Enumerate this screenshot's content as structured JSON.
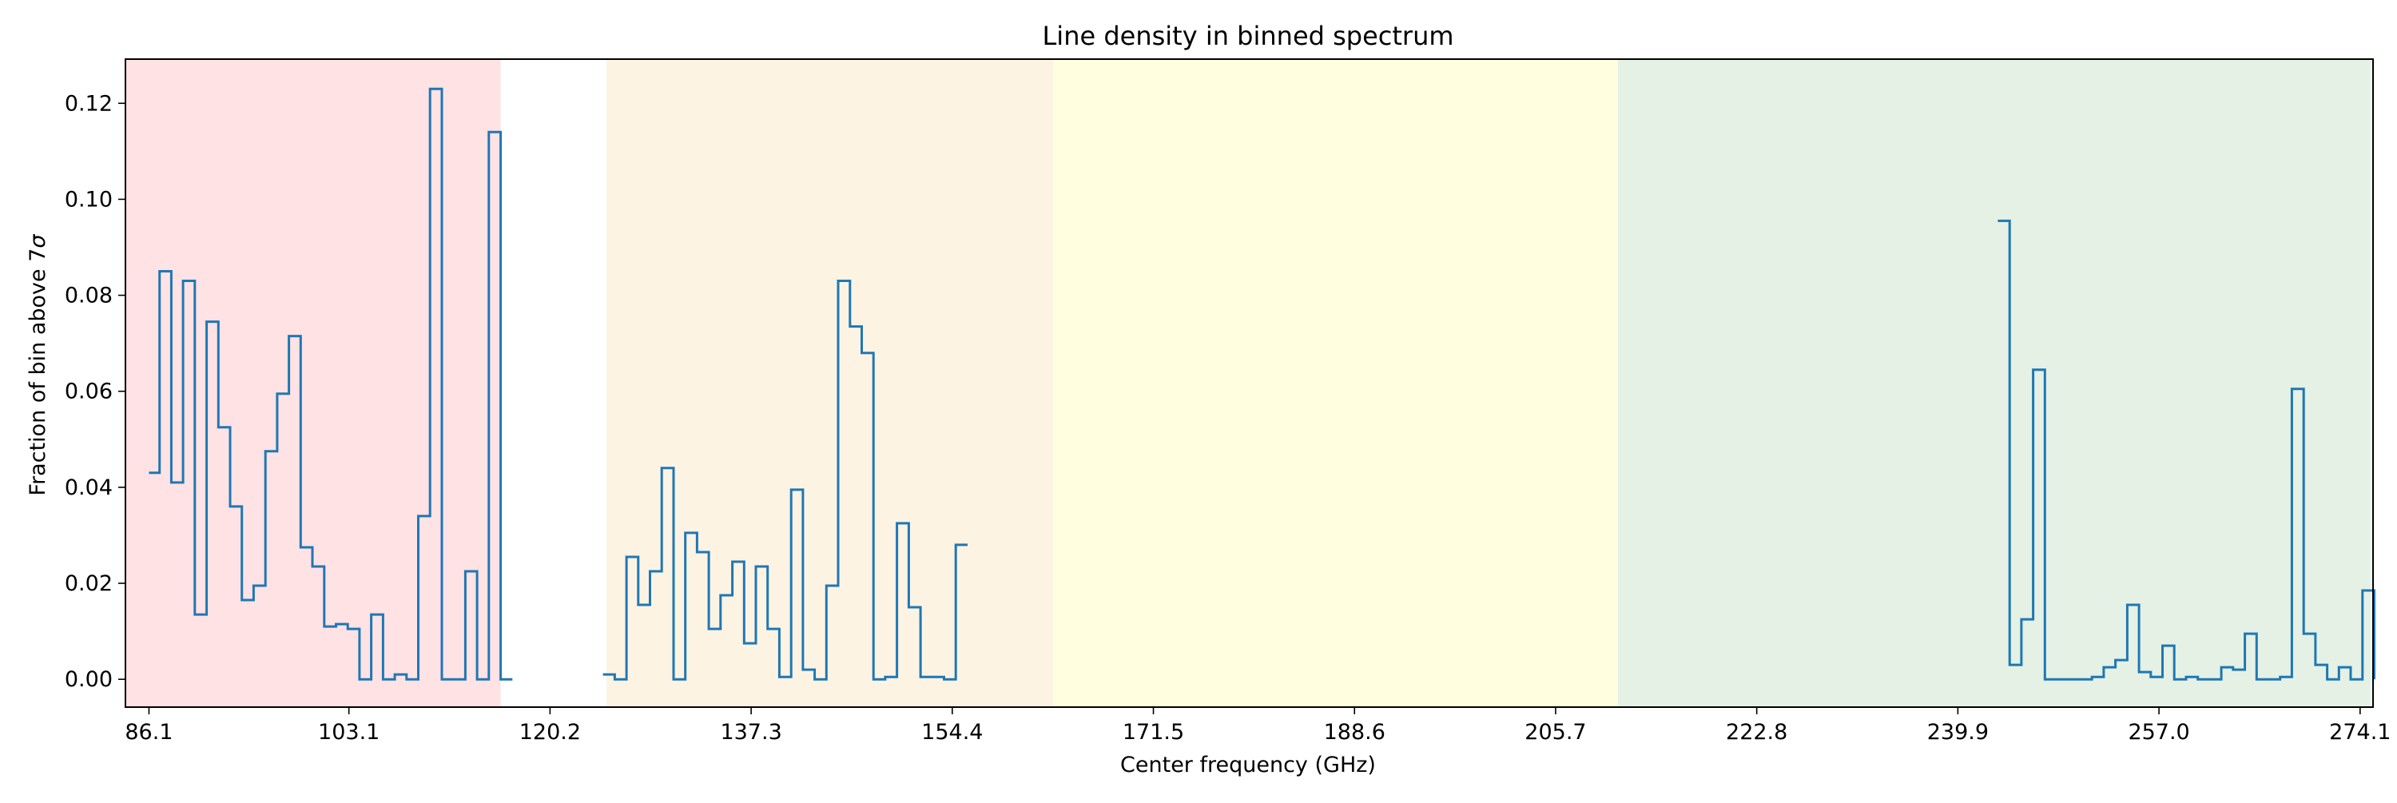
{
  "chart_data": {
    "type": "line",
    "title": "Line density in binned spectrum",
    "xlabel": "Center frequency (GHz)",
    "ylabel_prefix": "Fraction of bin above 7",
    "ylabel_symbol": "σ",
    "xlim": [
      84.1,
      275.2
    ],
    "ylim": [
      -0.0058,
      0.1292
    ],
    "x_ticks": [
      86.1,
      103.1,
      120.2,
      137.3,
      154.4,
      171.5,
      188.6,
      205.7,
      222.8,
      239.9,
      257.0,
      274.1
    ],
    "x_tick_labels": [
      "86.1",
      "103.1",
      "120.2",
      "137.3",
      "154.4",
      "171.5",
      "188.6",
      "205.7",
      "222.8",
      "239.9",
      "257.0",
      "274.1"
    ],
    "y_ticks": [
      0.0,
      0.02,
      0.04,
      0.06,
      0.08,
      0.1,
      0.12
    ],
    "y_tick_labels": [
      "0.00",
      "0.02",
      "0.04",
      "0.06",
      "0.08",
      "0.10",
      "0.12"
    ],
    "grid": false,
    "line_color": "#1f77b4",
    "bands": [
      {
        "x0": 84.0,
        "x1": 116.0,
        "color": "#ffe2e4"
      },
      {
        "x0": 125.0,
        "x1": 163.0,
        "color": "#fdf3e3"
      },
      {
        "x0": 163.0,
        "x1": 211.0,
        "color": "#ffffe0"
      },
      {
        "x0": 211.0,
        "x1": 275.0,
        "color": "#e4f1e4"
      }
    ],
    "series": [
      {
        "points": [
          [
            86.1,
            0.043
          ],
          [
            87.0,
            0.085
          ],
          [
            88.0,
            0.041
          ],
          [
            89.0,
            0.083
          ],
          [
            90.0,
            0.0135
          ],
          [
            91.0,
            0.0745
          ],
          [
            92.0,
            0.0525
          ],
          [
            93.0,
            0.036
          ],
          [
            94.0,
            0.0165
          ],
          [
            95.0,
            0.0195
          ],
          [
            96.0,
            0.0475
          ],
          [
            97.0,
            0.0595
          ],
          [
            98.0,
            0.0715
          ],
          [
            99.0,
            0.0275
          ],
          [
            100.0,
            0.0235
          ],
          [
            101.0,
            0.011
          ],
          [
            102.0,
            0.0115
          ],
          [
            103.0,
            0.0105
          ],
          [
            104.0,
            0.0
          ],
          [
            105.0,
            0.0135
          ],
          [
            106.0,
            0.0
          ],
          [
            107.0,
            0.001
          ],
          [
            108.0,
            0.0
          ],
          [
            109.0,
            0.034
          ],
          [
            110.0,
            0.123
          ],
          [
            111.0,
            0.0
          ],
          [
            112.0,
            0.0
          ],
          [
            113.0,
            0.0225
          ],
          [
            114.0,
            0.0
          ],
          [
            115.0,
            0.114
          ],
          [
            116.0,
            0.0
          ],
          [
            117.0,
            0.0
          ]
        ]
      },
      {
        "points": [
          [
            124.7,
            0.001
          ],
          [
            125.7,
            0.0
          ],
          [
            126.7,
            0.0255
          ],
          [
            127.7,
            0.0155
          ],
          [
            128.7,
            0.0225
          ],
          [
            129.7,
            0.044
          ],
          [
            130.7,
            0.0
          ],
          [
            131.7,
            0.0305
          ],
          [
            132.7,
            0.0265
          ],
          [
            133.7,
            0.0105
          ],
          [
            134.7,
            0.0175
          ],
          [
            135.7,
            0.0245
          ],
          [
            136.7,
            0.0075
          ],
          [
            137.7,
            0.0235
          ],
          [
            138.7,
            0.0105
          ],
          [
            139.7,
            0.0005
          ],
          [
            140.7,
            0.0395
          ],
          [
            141.7,
            0.002
          ],
          [
            142.7,
            0.0
          ],
          [
            143.7,
            0.0195
          ],
          [
            144.7,
            0.083
          ],
          [
            145.7,
            0.0735
          ],
          [
            146.7,
            0.068
          ],
          [
            147.7,
            0.0
          ],
          [
            148.7,
            0.0005
          ],
          [
            149.7,
            0.0325
          ],
          [
            150.7,
            0.015
          ],
          [
            151.7,
            0.0005
          ],
          [
            152.7,
            0.0005
          ],
          [
            153.7,
            0.0
          ],
          [
            154.7,
            0.028
          ],
          [
            155.7,
            0.028
          ]
        ]
      },
      {
        "points": [
          [
            243.3,
            0.0955
          ],
          [
            244.3,
            0.003
          ],
          [
            245.3,
            0.0125
          ],
          [
            246.3,
            0.0645
          ],
          [
            247.3,
            0.0
          ],
          [
            248.3,
            0.0
          ],
          [
            249.3,
            0.0
          ],
          [
            250.3,
            0.0
          ],
          [
            251.3,
            0.0005
          ],
          [
            252.3,
            0.0025
          ],
          [
            253.3,
            0.004
          ],
          [
            254.3,
            0.0155
          ],
          [
            255.3,
            0.0015
          ],
          [
            256.3,
            0.0005
          ],
          [
            257.3,
            0.007
          ],
          [
            258.3,
            0.0
          ],
          [
            259.3,
            0.0005
          ],
          [
            260.3,
            0.0
          ],
          [
            261.3,
            0.0
          ],
          [
            262.3,
            0.0025
          ],
          [
            263.3,
            0.002
          ],
          [
            264.3,
            0.0095
          ],
          [
            265.3,
            0.0
          ],
          [
            266.3,
            0.0
          ],
          [
            267.3,
            0.0005
          ],
          [
            268.3,
            0.0605
          ],
          [
            269.3,
            0.0095
          ],
          [
            270.3,
            0.003
          ],
          [
            271.3,
            0.0
          ],
          [
            272.3,
            0.0025
          ],
          [
            273.3,
            0.0
          ],
          [
            274.3,
            0.0185
          ],
          [
            275.3,
            0.0
          ]
        ]
      }
    ]
  }
}
